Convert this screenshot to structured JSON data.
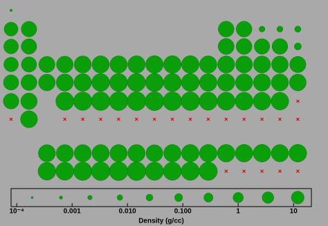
{
  "chart_data": {
    "type": "bubble",
    "rows": [
      [
        9e-05
      ],
      [
        0.534,
        1.85,
        2.34,
        2.27,
        0.00125,
        0.00143,
        0.0017
      ],
      [
        0.971,
        1.74,
        2.7,
        2.33,
        1.82,
        2.07,
        0.0032
      ],
      [
        0.862,
        1.54,
        2.99,
        4.51,
        6.0,
        7.19,
        7.21,
        7.87,
        8.9,
        8.9,
        8.96,
        7.14,
        5.91,
        5.32,
        5.73,
        4.81,
        3.12
      ],
      [
        1.53,
        2.64,
        4.47,
        6.51,
        8.57,
        10.28,
        11.5,
        12.37,
        12.41,
        12.02,
        10.49,
        8.65,
        7.31,
        7.29,
        6.68,
        6.24,
        4.93
      ],
      [
        1.93,
        3.62,
        13.31,
        16.69,
        19.25,
        21.02,
        22.59,
        22.56,
        21.45,
        19.3,
        13.53,
        11.85,
        11.34,
        9.78,
        9.2,
        null
      ],
      [
        null,
        5.5,
        null,
        null,
        null,
        null,
        null,
        null,
        null,
        null,
        null,
        null,
        null,
        null,
        null,
        null
      ],
      [
        6.15,
        6.77,
        6.77,
        7.01,
        7.26,
        7.52,
        5.24,
        7.9,
        8.23,
        8.55,
        8.8,
        9.07,
        9.32,
        6.9,
        9.84
      ],
      [
        10.07,
        11.72,
        15.37,
        19.1,
        20.45,
        19.82,
        13.67,
        13.51,
        14.78,
        15.1,
        null,
        null,
        null,
        null,
        null
      ]
    ],
    "color": "#0a9e0a",
    "missing_color": "#e00000",
    "size_legend": [
      0.00019,
      0.00063,
      0.0021,
      0.0073,
      0.025,
      0.084,
      0.29,
      1,
      3.45,
      11.9
    ],
    "xlabel": "Density (g/cc)",
    "xscale": "log",
    "xlim": [
      7.9e-05,
      21
    ],
    "xticks": [
      {
        "value": 0.0001,
        "label": "10⁻⁴"
      },
      0.001,
      {
        "value": 0.01,
        "label": "0.010"
      },
      {
        "value": 0.1,
        "label": "0.100"
      },
      1,
      10
    ]
  }
}
